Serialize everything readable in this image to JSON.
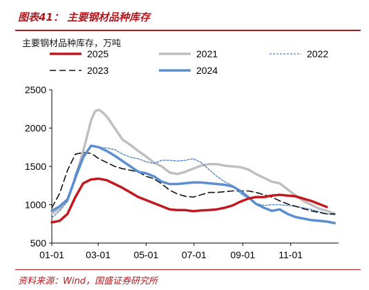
{
  "figure": {
    "title": "图表41：  主要钢材品种库存",
    "unit_note": "主要钢材品种库存，万吨",
    "source": "资料来源：Wind，国盛证券研究所"
  },
  "colors": {
    "title_red": "#b1191f",
    "s2025": "#c0191f",
    "s2021": "#bfbfbf",
    "s2022": "#4a7fc0",
    "s2023": "#111111",
    "s2024": "#5b8ed0"
  },
  "chart_data": {
    "type": "line",
    "ylabel": "",
    "xlabel": "",
    "ylim": [
      500,
      2500
    ],
    "y_ticks": [
      "500",
      "1000",
      "1500",
      "2000",
      "2500"
    ],
    "x_ticks": [
      "01-01",
      "03-01",
      "05-01",
      "07-01",
      "09-01",
      "11-01"
    ],
    "x_tick_days": [
      0,
      59,
      120,
      181,
      243,
      304
    ],
    "xlim": [
      0,
      365
    ],
    "grid": false,
    "legend_placement": "top",
    "series": [
      {
        "name": "2025",
        "style": "solid-thick",
        "color": "#c0191f",
        "x": [
          0,
          10,
          20,
          30,
          40,
          50,
          60,
          70,
          80,
          90,
          100,
          110,
          120,
          130,
          140,
          150,
          160,
          170,
          180,
          190,
          200,
          210,
          220,
          230,
          240,
          250,
          260,
          270,
          280,
          290,
          300,
          310,
          320,
          330,
          340,
          350
        ],
        "y": [
          770,
          790,
          880,
          1100,
          1280,
          1330,
          1340,
          1320,
          1270,
          1220,
          1160,
          1100,
          1060,
          1020,
          980,
          940,
          930,
          930,
          915,
          925,
          930,
          940,
          960,
          990,
          1040,
          1080,
          1100,
          1100,
          1120,
          1130,
          1120,
          1110,
          1080,
          1050,
          1010,
          970
        ]
      },
      {
        "name": "2021",
        "style": "solid-thick",
        "color": "#bfbfbf",
        "x": [
          0,
          10,
          20,
          30,
          40,
          50,
          55,
          60,
          65,
          70,
          80,
          90,
          100,
          110,
          120,
          130,
          140,
          150,
          160,
          170,
          180,
          190,
          200,
          210,
          220,
          230,
          240,
          250,
          260,
          270,
          280,
          290,
          300,
          310,
          320,
          330,
          340,
          350,
          360
        ],
        "y": [
          880,
          950,
          1050,
          1350,
          1700,
          2100,
          2220,
          2240,
          2200,
          2150,
          2000,
          1850,
          1780,
          1700,
          1630,
          1550,
          1500,
          1420,
          1400,
          1430,
          1470,
          1510,
          1530,
          1530,
          1510,
          1500,
          1490,
          1460,
          1400,
          1350,
          1300,
          1280,
          1200,
          1120,
          1050,
          1000,
          950,
          920,
          880
        ]
      },
      {
        "name": "2022",
        "style": "dotted",
        "color": "#4a7fc0",
        "x": [
          0,
          10,
          20,
          30,
          40,
          50,
          60,
          70,
          80,
          90,
          100,
          110,
          120,
          130,
          140,
          150,
          160,
          170,
          180,
          190,
          200,
          210,
          220,
          230,
          240,
          250,
          260,
          270,
          280,
          290,
          300,
          310,
          320,
          330,
          340,
          350,
          360
        ],
        "y": [
          830,
          920,
          1050,
          1400,
          1650,
          1760,
          1750,
          1740,
          1720,
          1660,
          1620,
          1600,
          1560,
          1540,
          1580,
          1580,
          1570,
          1580,
          1600,
          1550,
          1460,
          1370,
          1300,
          1250,
          1150,
          1080,
          1020,
          990,
          1000,
          1000,
          990,
          980,
          960,
          940,
          910,
          880,
          870
        ]
      },
      {
        "name": "2023",
        "style": "dashed",
        "color": "#111111",
        "x": [
          0,
          10,
          20,
          30,
          40,
          50,
          60,
          70,
          80,
          90,
          100,
          110,
          120,
          130,
          140,
          150,
          160,
          170,
          180,
          190,
          200,
          210,
          220,
          230,
          240,
          250,
          260,
          270,
          280,
          290,
          300,
          310,
          320,
          330,
          340,
          350,
          360
        ],
        "y": [
          960,
          1150,
          1450,
          1660,
          1680,
          1670,
          1600,
          1550,
          1500,
          1470,
          1450,
          1430,
          1370,
          1340,
          1270,
          1190,
          1140,
          1110,
          1100,
          1130,
          1160,
          1160,
          1170,
          1180,
          1180,
          1180,
          1160,
          1130,
          1100,
          1050,
          1010,
          980,
          950,
          920,
          900,
          880,
          880
        ]
      },
      {
        "name": "2024",
        "style": "solid-thick",
        "color": "#5b8ed0",
        "x": [
          0,
          10,
          20,
          30,
          40,
          50,
          60,
          70,
          80,
          90,
          100,
          110,
          120,
          130,
          140,
          150,
          160,
          170,
          180,
          190,
          200,
          210,
          220,
          230,
          240,
          250,
          260,
          270,
          280,
          290,
          300,
          310,
          320,
          330,
          340,
          350,
          360
        ],
        "y": [
          920,
          980,
          1070,
          1350,
          1620,
          1770,
          1750,
          1700,
          1640,
          1570,
          1500,
          1430,
          1410,
          1370,
          1300,
          1270,
          1270,
          1280,
          1290,
          1290,
          1280,
          1270,
          1260,
          1240,
          1180,
          1100,
          1010,
          960,
          920,
          940,
          880,
          840,
          820,
          800,
          790,
          780,
          760
        ]
      }
    ]
  }
}
